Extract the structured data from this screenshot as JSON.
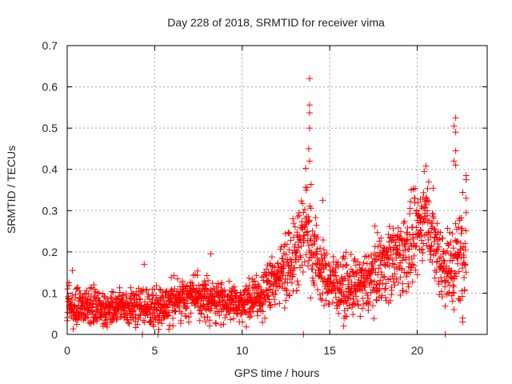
{
  "chart_data": {
    "type": "scatter",
    "title": "Day 228 of 2018, SRMTID for receiver vima",
    "xlabel": "GPS time / hours",
    "ylabel": "SRMTID / TECUs",
    "xlim": [
      0,
      24
    ],
    "ylim": [
      0,
      0.7
    ],
    "xticks": [
      0,
      5,
      10,
      15,
      20
    ],
    "xtick_labels": [
      "0",
      "5",
      "10",
      "15",
      "20"
    ],
    "yticks": [
      0,
      0.1,
      0.2,
      0.3,
      0.4,
      0.5,
      0.6,
      0.7
    ],
    "ytick_labels": [
      "0",
      "0.1",
      "0.2",
      "0.3",
      "0.4",
      "0.5",
      "0.6",
      "0.7"
    ],
    "grid": true,
    "marker": "+",
    "color": "#ff0000",
    "series": [
      {
        "name": "SRMTID",
        "trend": {
          "description": "approximate median and spread (data units) of the point cloud vs time",
          "x": [
            0,
            1,
            2,
            3,
            4,
            5,
            6,
            7,
            8,
            9,
            10,
            11,
            12,
            13,
            13.7,
            14,
            14.5,
            15,
            16,
            17,
            18,
            19,
            19.8,
            20.5,
            21,
            21.5,
            22,
            22.5,
            22.8
          ],
          "median": [
            0.07,
            0.07,
            0.06,
            0.065,
            0.065,
            0.06,
            0.08,
            0.095,
            0.085,
            0.08,
            0.075,
            0.09,
            0.14,
            0.2,
            0.26,
            0.22,
            0.15,
            0.13,
            0.11,
            0.12,
            0.17,
            0.19,
            0.22,
            0.3,
            0.22,
            0.17,
            0.16,
            0.2,
            0.22
          ],
          "spread": [
            0.03,
            0.03,
            0.03,
            0.03,
            0.035,
            0.03,
            0.035,
            0.035,
            0.035,
            0.03,
            0.03,
            0.035,
            0.05,
            0.07,
            0.09,
            0.08,
            0.05,
            0.05,
            0.045,
            0.05,
            0.06,
            0.07,
            0.07,
            0.06,
            0.07,
            0.07,
            0.07,
            0.09,
            0.1
          ]
        },
        "outliers": [
          {
            "x": 4.4,
            "y": 0.17
          },
          {
            "x": 8.2,
            "y": 0.195
          },
          {
            "x": 13.85,
            "y": 0.62
          },
          {
            "x": 13.85,
            "y": 0.556
          },
          {
            "x": 13.85,
            "y": 0.537
          },
          {
            "x": 13.85,
            "y": 0.5
          },
          {
            "x": 13.8,
            "y": 0.45
          },
          {
            "x": 13.85,
            "y": 0.42
          },
          {
            "x": 14.6,
            "y": 0.325
          },
          {
            "x": 20.5,
            "y": 0.408
          },
          {
            "x": 20.4,
            "y": 0.395
          },
          {
            "x": 22.2,
            "y": 0.525
          },
          {
            "x": 22.1,
            "y": 0.505
          },
          {
            "x": 22.2,
            "y": 0.49
          },
          {
            "x": 22.2,
            "y": 0.445
          },
          {
            "x": 22.1,
            "y": 0.42
          },
          {
            "x": 22.2,
            "y": 0.41
          },
          {
            "x": 22.8,
            "y": 0.385
          },
          {
            "x": 22.8,
            "y": 0.375
          },
          {
            "x": 22.8,
            "y": 0.33
          },
          {
            "x": 22.8,
            "y": 0.295
          },
          {
            "x": 22.6,
            "y": 0.04
          },
          {
            "x": 22.6,
            "y": 0.03
          },
          {
            "x": 22.1,
            "y": 0.06
          },
          {
            "x": 15.8,
            "y": 0.02
          },
          {
            "x": 0.1,
            "y": 0.125
          },
          {
            "x": 0.3,
            "y": 0.155
          },
          {
            "x": 4.3,
            "y": 0.0
          },
          {
            "x": 5.2,
            "y": 0.0
          },
          {
            "x": 13.5,
            "y": 0.0
          },
          {
            "x": 21.6,
            "y": 0.0
          }
        ]
      }
    ]
  }
}
